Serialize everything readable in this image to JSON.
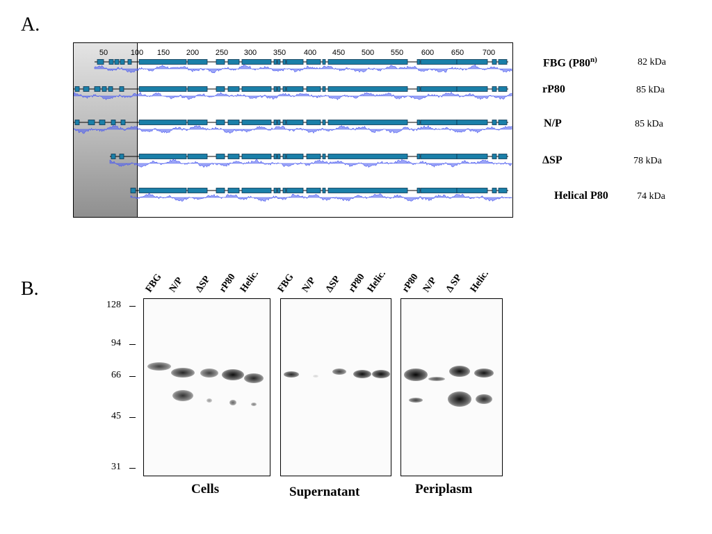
{
  "panelA": {
    "label": "A.",
    "ruler_ticks": [
      "50",
      "100",
      "150",
      "200",
      "250",
      "300",
      "350",
      "400",
      "450",
      "500",
      "550",
      "600",
      "650",
      "700"
    ],
    "constructs": [
      {
        "name": "FBG (P80",
        "name_sup": "n)",
        "size": "82 kDa"
      },
      {
        "name": "rP80",
        "name_sup": "",
        "size": "85 kDa"
      },
      {
        "name": "N/P",
        "name_sup": "",
        "size": "85 kDa"
      },
      {
        "name": "ΔSP",
        "name_sup": "",
        "size": "78 kDa"
      },
      {
        "name": "Helical P80",
        "name_sup": "",
        "size": "74 kDa"
      }
    ],
    "colors": {
      "domain": "#1a7fa8",
      "domain_border": "#0b3550",
      "hydropathy": "#4d5cf0",
      "shade_dark": "#8f8f8f"
    }
  },
  "panelB": {
    "label": "B.",
    "markers": [
      "128",
      "94",
      "66",
      "45",
      "31"
    ],
    "gels": [
      {
        "title": "Cells",
        "lanes": [
          "FBG",
          "N/P",
          "ΔSP",
          "rP80",
          "Helic."
        ]
      },
      {
        "title": "Supernatant",
        "lanes": [
          "FBG",
          "N/P",
          "ΔSP",
          "rP80",
          "Helic."
        ]
      },
      {
        "title": "Periplasm",
        "lanes": [
          "rP80",
          "N/P",
          "Δ SP",
          "Helic."
        ]
      }
    ]
  }
}
